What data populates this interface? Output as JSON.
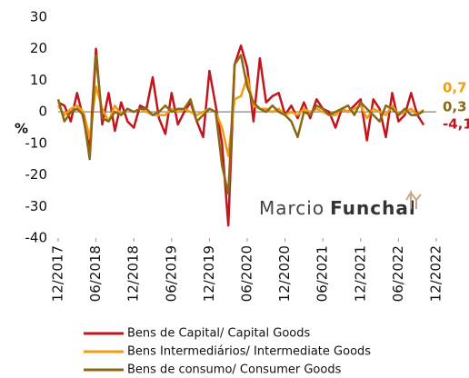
{
  "chart_data": {
    "type": "line",
    "ylabel": "%",
    "watermark": [
      "Marcio",
      "Funchal"
    ],
    "categories": [
      "12/2017",
      null,
      null,
      null,
      null,
      null,
      "06/2018",
      null,
      null,
      null,
      null,
      null,
      "12/2018",
      null,
      null,
      null,
      null,
      null,
      "06/2019",
      null,
      null,
      null,
      null,
      null,
      "12/2019",
      null,
      null,
      null,
      null,
      null,
      "06/2020",
      null,
      null,
      null,
      null,
      null,
      "12/2020",
      null,
      null,
      null,
      null,
      null,
      "06/2021",
      null,
      null,
      null,
      null,
      null,
      "12/2021",
      null,
      null,
      null,
      null,
      null,
      "06/2022",
      null,
      null,
      null,
      null,
      null,
      "12/2022"
    ],
    "series": [
      {
        "name": "Bens de Capital/ Capital Goods",
        "color": "#c0161c",
        "values": [
          3,
          2,
          -3,
          6,
          -2,
          -12,
          20,
          -4,
          6,
          -6,
          3,
          -3,
          -5,
          2,
          1,
          11,
          -2,
          -7,
          6,
          -4,
          0,
          3,
          -3,
          -8,
          13,
          2,
          -10,
          -36,
          15,
          21,
          14,
          -3,
          17,
          3,
          5,
          6,
          -1,
          2,
          -2,
          3,
          -2,
          4,
          1,
          0,
          -5,
          1,
          0,
          2,
          4,
          -9,
          4,
          1,
          -8,
          6,
          -3,
          -1,
          6,
          -1,
          -4.1,
          null,
          null
        ]
      },
      {
        "name": "Bens Intermediários/ Intermediate Goods",
        "color": "#f39c12",
        "values": [
          2,
          -1,
          1,
          2,
          0,
          -8,
          8,
          1,
          -3,
          2,
          -1,
          1,
          0,
          1,
          0,
          -1,
          -1,
          -1,
          1,
          0,
          1,
          0,
          -1,
          0,
          1,
          0,
          -5,
          -14,
          4,
          5,
          11,
          2,
          1,
          1,
          0,
          1,
          -1,
          0,
          -1,
          1,
          0,
          1,
          0,
          -1,
          -1,
          1,
          0,
          1,
          2,
          -2,
          1,
          0,
          -1,
          2,
          -1,
          0,
          1,
          -1,
          0.7,
          null,
          null
        ]
      },
      {
        "name": "Bens de consumo/ Consumer Goods",
        "color": "#8b6914",
        "values": [
          4,
          -3,
          0,
          1,
          -1,
          -15,
          18,
          -2,
          -3,
          0,
          -1,
          1,
          0,
          1,
          1,
          -1,
          0,
          2,
          0,
          1,
          1,
          4,
          -3,
          -1,
          1,
          0,
          -17,
          -26,
          15,
          18,
          8,
          3,
          1,
          0,
          2,
          0,
          -1,
          -3,
          -8,
          0,
          -1,
          2,
          1,
          -1,
          0,
          1,
          2,
          -1,
          3,
          1,
          -1,
          -3,
          2,
          1,
          -1,
          1,
          -1,
          -1,
          0.3,
          null,
          null
        ]
      }
    ],
    "annotations": [
      "0,7",
      "0,3",
      "-4,1"
    ],
    "ylim": [
      -40,
      30
    ],
    "yticks": [
      -40,
      -30,
      -20,
      -10,
      0,
      10,
      20,
      30
    ]
  }
}
